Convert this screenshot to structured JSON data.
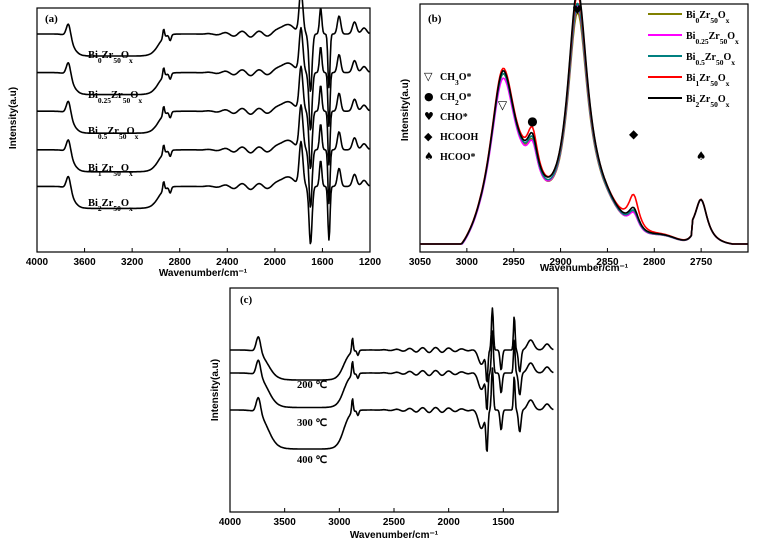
{
  "chart_data": [
    {
      "panel": "(a)",
      "type": "line",
      "xlabel": "Wavenumber/cm⁻¹",
      "ylabel": "Intensity(a.u)",
      "xlim": [
        4000,
        1200
      ],
      "xticks": [
        4000,
        3600,
        3200,
        2800,
        2400,
        2000,
        1600,
        1200
      ],
      "series": [
        {
          "name": "Bi0Zr50Ox",
          "label": {
            "main": "Bi",
            "sub1": "0",
            "mid": "Zr",
            "sub2": "50",
            "tail": "O",
            "sub3": "x"
          },
          "baseline": 6
        },
        {
          "name": "Bi0.25Zr50Ox",
          "label": {
            "main": "Bi",
            "sub1": "0.25",
            "mid": "Zr",
            "sub2": "50",
            "tail": "O",
            "sub3": "x"
          },
          "baseline": 5
        },
        {
          "name": "Bi0.5Zr50Ox",
          "label": {
            "main": "Bi",
            "sub1": "0.5",
            "mid": "Zr",
            "sub2": "50",
            "tail": "O",
            "sub3": "x"
          },
          "baseline": 4
        },
        {
          "name": "Bi1Zr50Ox",
          "label": {
            "main": "Bi",
            "sub1": "1",
            "mid": "Zr",
            "sub2": "50",
            "tail": "O",
            "sub3": "x"
          },
          "baseline": 3
        },
        {
          "name": "Bi2Zr50Ox",
          "label": {
            "main": "Bi",
            "sub1": "2",
            "mid": "Zr",
            "sub2": "50",
            "tail": "O",
            "sub3": "x"
          },
          "baseline": 2
        }
      ]
    },
    {
      "panel": "(b)",
      "type": "line",
      "xlabel": "Wavenumber/cm⁻¹",
      "ylabel": "Intensity(a.u)",
      "xlim": [
        3050,
        2700
      ],
      "xticks": [
        3050,
        3000,
        2950,
        2900,
        2850,
        2800,
        2750
      ],
      "peaks": [
        {
          "x": 2962,
          "symbol": "▽",
          "species": "CH3O*",
          "legend": {
            "main": "CH",
            "sub": "3",
            "tail": "O*"
          }
        },
        {
          "x": 2930,
          "symbol": "●",
          "species": "CH2O*",
          "legend": {
            "main": "CH",
            "sub": "2",
            "tail": "O*"
          }
        },
        {
          "x": 2882,
          "symbol": "♥",
          "species": "CHO*",
          "legend": {
            "main": "CHO*",
            "sub": "",
            "tail": ""
          }
        },
        {
          "x": 2822,
          "symbol": "◆",
          "species": "HCOOH",
          "legend": {
            "main": "HCOOH",
            "sub": "",
            "tail": ""
          }
        },
        {
          "x": 2750,
          "symbol": "♠",
          "species": "HCOO*",
          "legend": {
            "main": "HCOO*",
            "sub": "",
            "tail": ""
          }
        }
      ],
      "series": [
        {
          "name": "Bi0Zr50Ox",
          "color": "#808000",
          "label": {
            "main": "Bi",
            "sub1": "0",
            "mid": "Zr",
            "sub2": "50",
            "tail": "O",
            "sub3": "x"
          },
          "heights": [
            0.62,
            0.36,
            0.94,
            0.2,
            0.19
          ]
        },
        {
          "name": "Bi0.25Zr50Ox",
          "color": "#ff00ff",
          "label": {
            "main": "Bi",
            "sub1": "0.25",
            "mid": "Zr",
            "sub2": "50",
            "tail": "O",
            "sub3": "x"
          },
          "heights": [
            0.6,
            0.35,
            0.97,
            0.19,
            0.19
          ]
        },
        {
          "name": "Bi0.5Zr50Ox",
          "color": "#008080",
          "label": {
            "main": "Bi",
            "sub1": "0.5",
            "mid": "Zr",
            "sub2": "50",
            "tail": "O",
            "sub3": "x"
          },
          "heights": [
            0.62,
            0.38,
            0.98,
            0.21,
            0.19
          ]
        },
        {
          "name": "Bi1Zr50Ox",
          "color": "#ff0000",
          "label": {
            "main": "Bi",
            "sub1": "1",
            "mid": "Zr",
            "sub2": "50",
            "tail": "O",
            "sub3": "x"
          },
          "heights": [
            0.64,
            0.46,
            1.02,
            0.36,
            0.19
          ]
        },
        {
          "name": "Bi2Zr50Ox",
          "color": "#000000",
          "label": {
            "main": "Bi",
            "sub1": "2",
            "mid": "Zr",
            "sub2": "50",
            "tail": "O",
            "sub3": "x"
          },
          "heights": [
            0.63,
            0.4,
            1.04,
            0.23,
            0.19
          ]
        }
      ]
    },
    {
      "panel": "(c)",
      "type": "line",
      "xlabel": "Wavenumber/cm⁻¹",
      "ylabel": "Intensity(a.u)",
      "xlim": [
        4000,
        1000
      ],
      "xticks": [
        4000,
        3500,
        3000,
        2500,
        2000,
        1500
      ],
      "series": [
        {
          "name": "200 ℃",
          "baseline": 3
        },
        {
          "name": "300 ℃",
          "baseline": 2
        },
        {
          "name": "400 ℃",
          "baseline": 1
        }
      ]
    }
  ]
}
